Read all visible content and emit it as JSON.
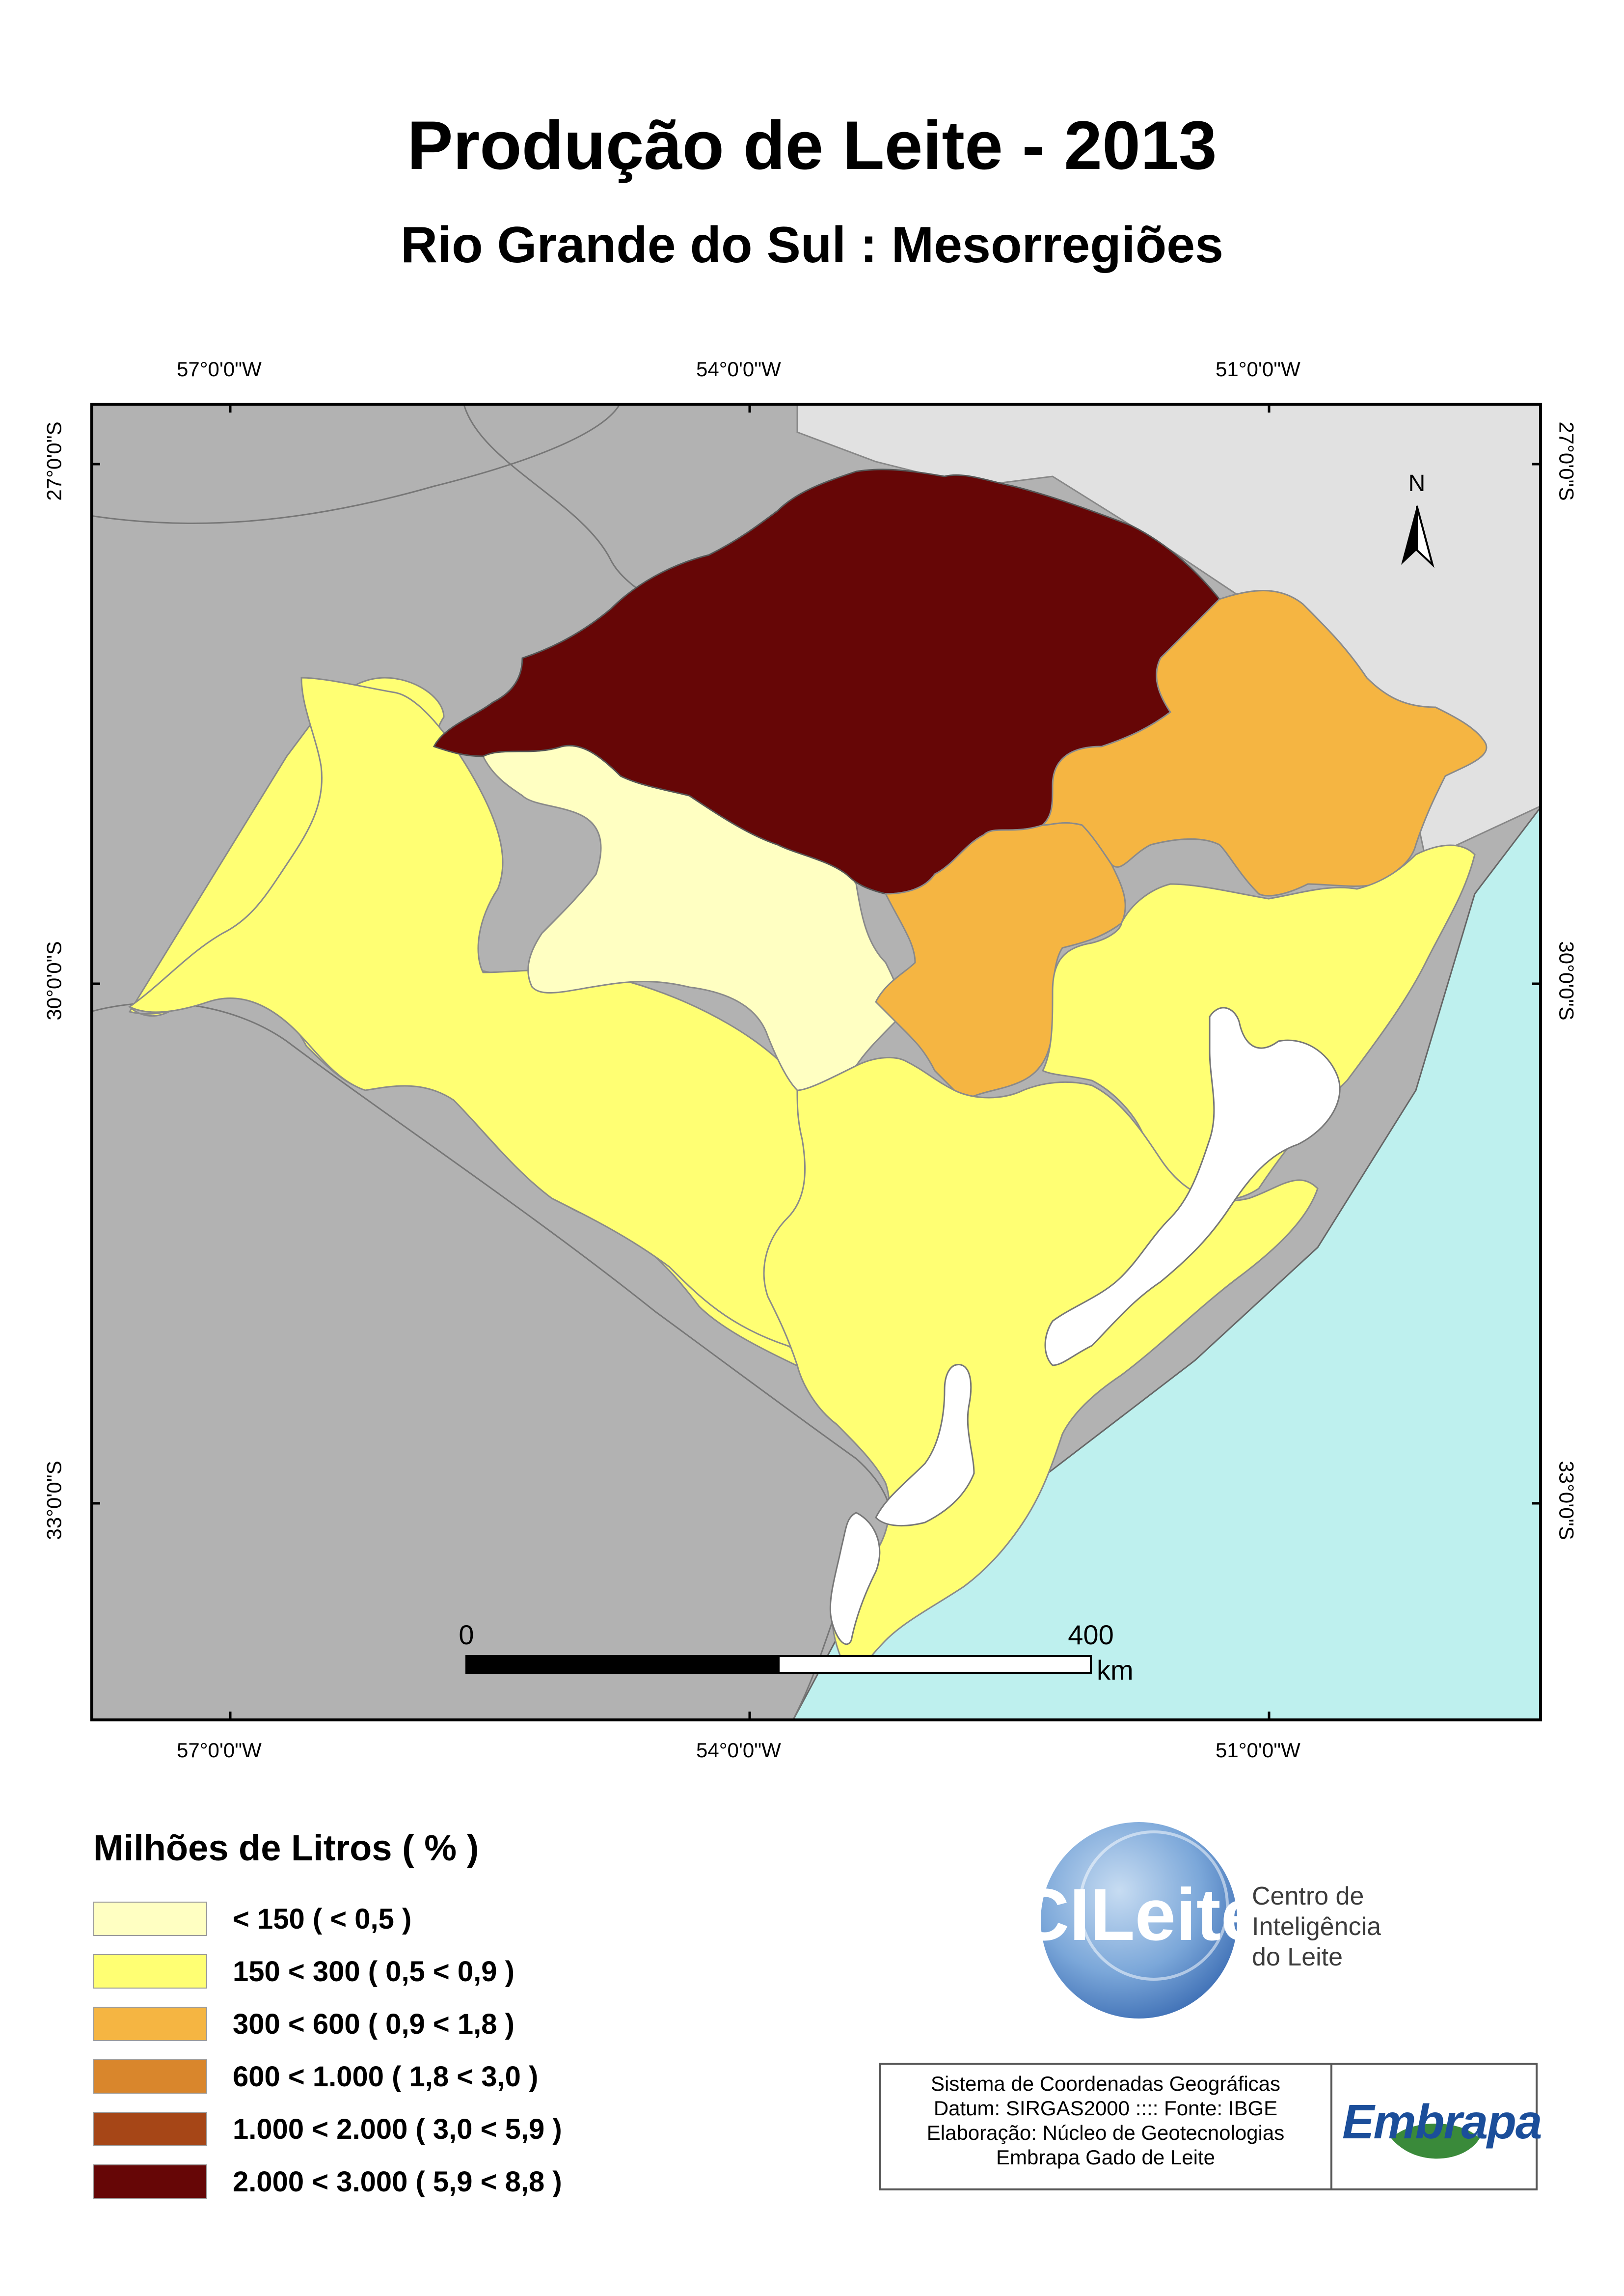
{
  "title": "Produção de Leite - 2013",
  "subtitle": "Rio Grande do Sul : Mesorregiões",
  "coords": {
    "top_lon": [
      "57°0'0\"W",
      "54°0'0\"W",
      "51°0'0\"W"
    ],
    "bottom_lon": [
      "57°0'0\"W",
      "54°0'0\"W",
      "51°0'0\"W"
    ],
    "left_lat": [
      "27°0'0\"S",
      "30°0'0\"S",
      "33°0'0\"S"
    ],
    "right_lat": [
      "27°0'0\"S",
      "30°0'0\"S",
      "33°0'0\"S"
    ]
  },
  "north_arrow_label": "N",
  "scale_bar": {
    "start": "0",
    "end": "400",
    "unit": "km"
  },
  "legend": {
    "title": "Milhões de Litros ( % )",
    "items": [
      {
        "label": "< 150 ( < 0,5 )",
        "color": "#ffffc2"
      },
      {
        "label": "150 < 300 ( 0,5 < 0,9 )",
        "color": "#ffff73"
      },
      {
        "label": "300 < 600 ( 0,9 < 1,8 )",
        "color": "#f5b542"
      },
      {
        "label": "600 < 1.000 ( 1,8 < 3,0 )",
        "color": "#d9862c"
      },
      {
        "label": "1.000 < 2.000 ( 3,0 < 5,9 )",
        "color": "#a64617"
      },
      {
        "label": "2.000 < 3.000 ( 5,9 < 8,8 )",
        "color": "#660606"
      }
    ]
  },
  "colors": {
    "ocean": "#bef0ee",
    "argentina_uruguay": "#b2b2b2",
    "brazil_north": "#e1e1e1",
    "lagoon": "#ffffff"
  },
  "logo": {
    "name": "CILeite",
    "caption": [
      "Centro de",
      "Inteligência",
      "do Leite"
    ]
  },
  "credits": {
    "lines": [
      "Sistema de Coordenadas Geográficas",
      "Datum: SIRGAS2000  ::::  Fonte: IBGE",
      "Elaboração: Núcleo de Geotecnologias",
      "Embrapa Gado de Leite"
    ],
    "org": "Embrapa"
  }
}
